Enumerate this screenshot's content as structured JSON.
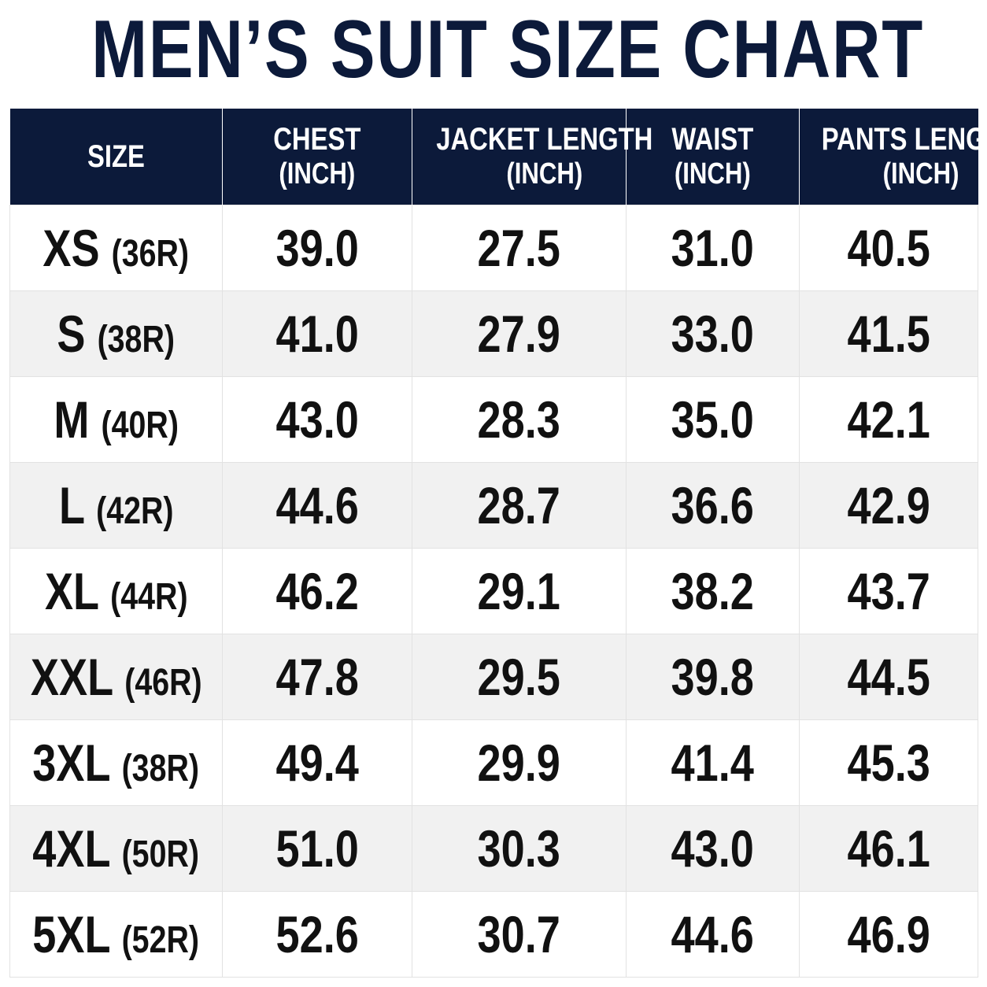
{
  "header": {
    "title": "MEN’S SUIT SIZE CHART"
  },
  "table": {
    "columns": [
      {
        "label": "SIZE"
      },
      {
        "label": "CHEST",
        "unit": "(INCH)"
      },
      {
        "label": "JACKET LENGTH",
        "unit": "(INCH)"
      },
      {
        "label": "WAIST",
        "unit": "(INCH)"
      },
      {
        "label": "PANTS LENGTH",
        "unit": "(INCH)"
      }
    ],
    "rows": [
      {
        "size": "XS",
        "code": "(36R)",
        "cells": [
          "39.0",
          "27.5",
          "31.0",
          "40.5"
        ]
      },
      {
        "size": "S",
        "code": "(38R)",
        "cells": [
          "41.0",
          "27.9",
          "33.0",
          "41.5"
        ]
      },
      {
        "size": "M",
        "code": "(40R)",
        "cells": [
          "43.0",
          "28.3",
          "35.0",
          "42.1"
        ]
      },
      {
        "size": "L",
        "code": "(42R)",
        "cells": [
          "44.6",
          "28.7",
          "36.6",
          "42.9"
        ]
      },
      {
        "size": "XL",
        "code": "(44R)",
        "cells": [
          "46.2",
          "29.1",
          "38.2",
          "43.7"
        ]
      },
      {
        "size": "XXL",
        "code": "(46R)",
        "cells": [
          "47.8",
          "29.5",
          "39.8",
          "44.5"
        ]
      },
      {
        "size": "3XL",
        "code": "(38R)",
        "cells": [
          "49.4",
          "29.9",
          "41.4",
          "45.3"
        ]
      },
      {
        "size": "4XL",
        "code": "(50R)",
        "cells": [
          "51.0",
          "30.3",
          "43.0",
          "46.1"
        ]
      },
      {
        "size": "5XL",
        "code": "(52R)",
        "cells": [
          "52.6",
          "30.7",
          "44.6",
          "46.9"
        ]
      }
    ]
  }
}
